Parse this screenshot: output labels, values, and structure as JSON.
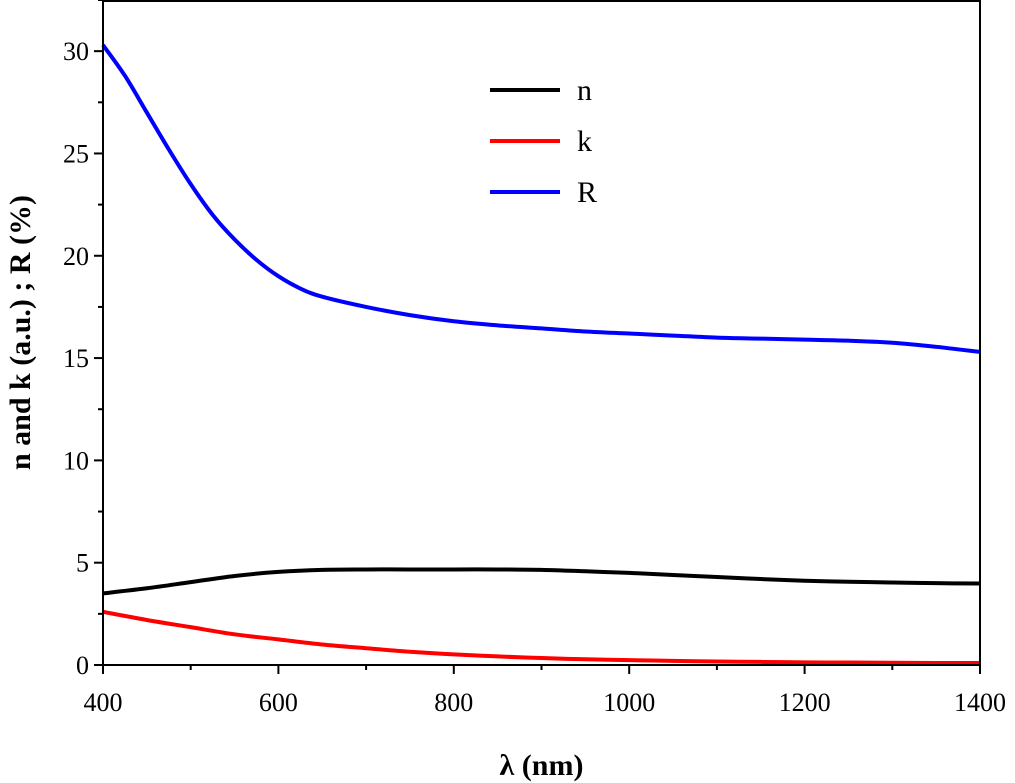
{
  "chart_data": {
    "type": "line",
    "xlabel": "λ (nm)",
    "ylabel": "n and k (a.u.) ; R (%)",
    "xlim": [
      400,
      1400
    ],
    "ylim": [
      0,
      32.5
    ],
    "xticks": [
      400,
      600,
      800,
      1000,
      1200,
      1400
    ],
    "yticks": [
      0,
      5,
      10,
      15,
      20,
      25,
      30
    ],
    "xtick_labels": [
      "400",
      "600",
      "800",
      "1000",
      "1200",
      "1400"
    ],
    "ytick_labels": [
      "0",
      "5",
      "10",
      "15",
      "20",
      "25",
      "30"
    ],
    "grid": false,
    "legend_position": "top-center",
    "series": [
      {
        "name": "n",
        "color": "#000000",
        "x": [
          400,
          450,
          500,
          550,
          600,
          650,
          700,
          750,
          800,
          850,
          900,
          950,
          1000,
          1050,
          1100,
          1150,
          1200,
          1250,
          1300,
          1350,
          1400
        ],
        "y": [
          3.5,
          3.75,
          4.05,
          4.35,
          4.55,
          4.65,
          4.67,
          4.67,
          4.67,
          4.67,
          4.65,
          4.58,
          4.5,
          4.4,
          4.3,
          4.2,
          4.12,
          4.07,
          4.03,
          4.0,
          3.98
        ]
      },
      {
        "name": "k",
        "color": "#ff0000",
        "x": [
          400,
          450,
          500,
          550,
          600,
          650,
          700,
          750,
          800,
          850,
          900,
          950,
          1000,
          1050,
          1100,
          1150,
          1200,
          1250,
          1300,
          1350,
          1400
        ],
        "y": [
          2.6,
          2.2,
          1.85,
          1.5,
          1.25,
          1.0,
          0.82,
          0.65,
          0.52,
          0.42,
          0.34,
          0.28,
          0.24,
          0.2,
          0.17,
          0.15,
          0.13,
          0.12,
          0.11,
          0.1,
          0.1
        ]
      },
      {
        "name": "R",
        "color": "#0000ff",
        "x": [
          400,
          425,
          450,
          475,
          500,
          525,
          550,
          575,
          600,
          625,
          650,
          700,
          750,
          800,
          850,
          900,
          950,
          1000,
          1050,
          1100,
          1150,
          1200,
          1250,
          1300,
          1350,
          1400
        ],
        "y": [
          30.3,
          28.8,
          27.0,
          25.2,
          23.5,
          22.0,
          20.8,
          19.8,
          19.0,
          18.4,
          18.0,
          17.5,
          17.1,
          16.8,
          16.6,
          16.45,
          16.3,
          16.2,
          16.1,
          16.0,
          15.95,
          15.9,
          15.85,
          15.75,
          15.55,
          15.3
        ]
      }
    ]
  }
}
